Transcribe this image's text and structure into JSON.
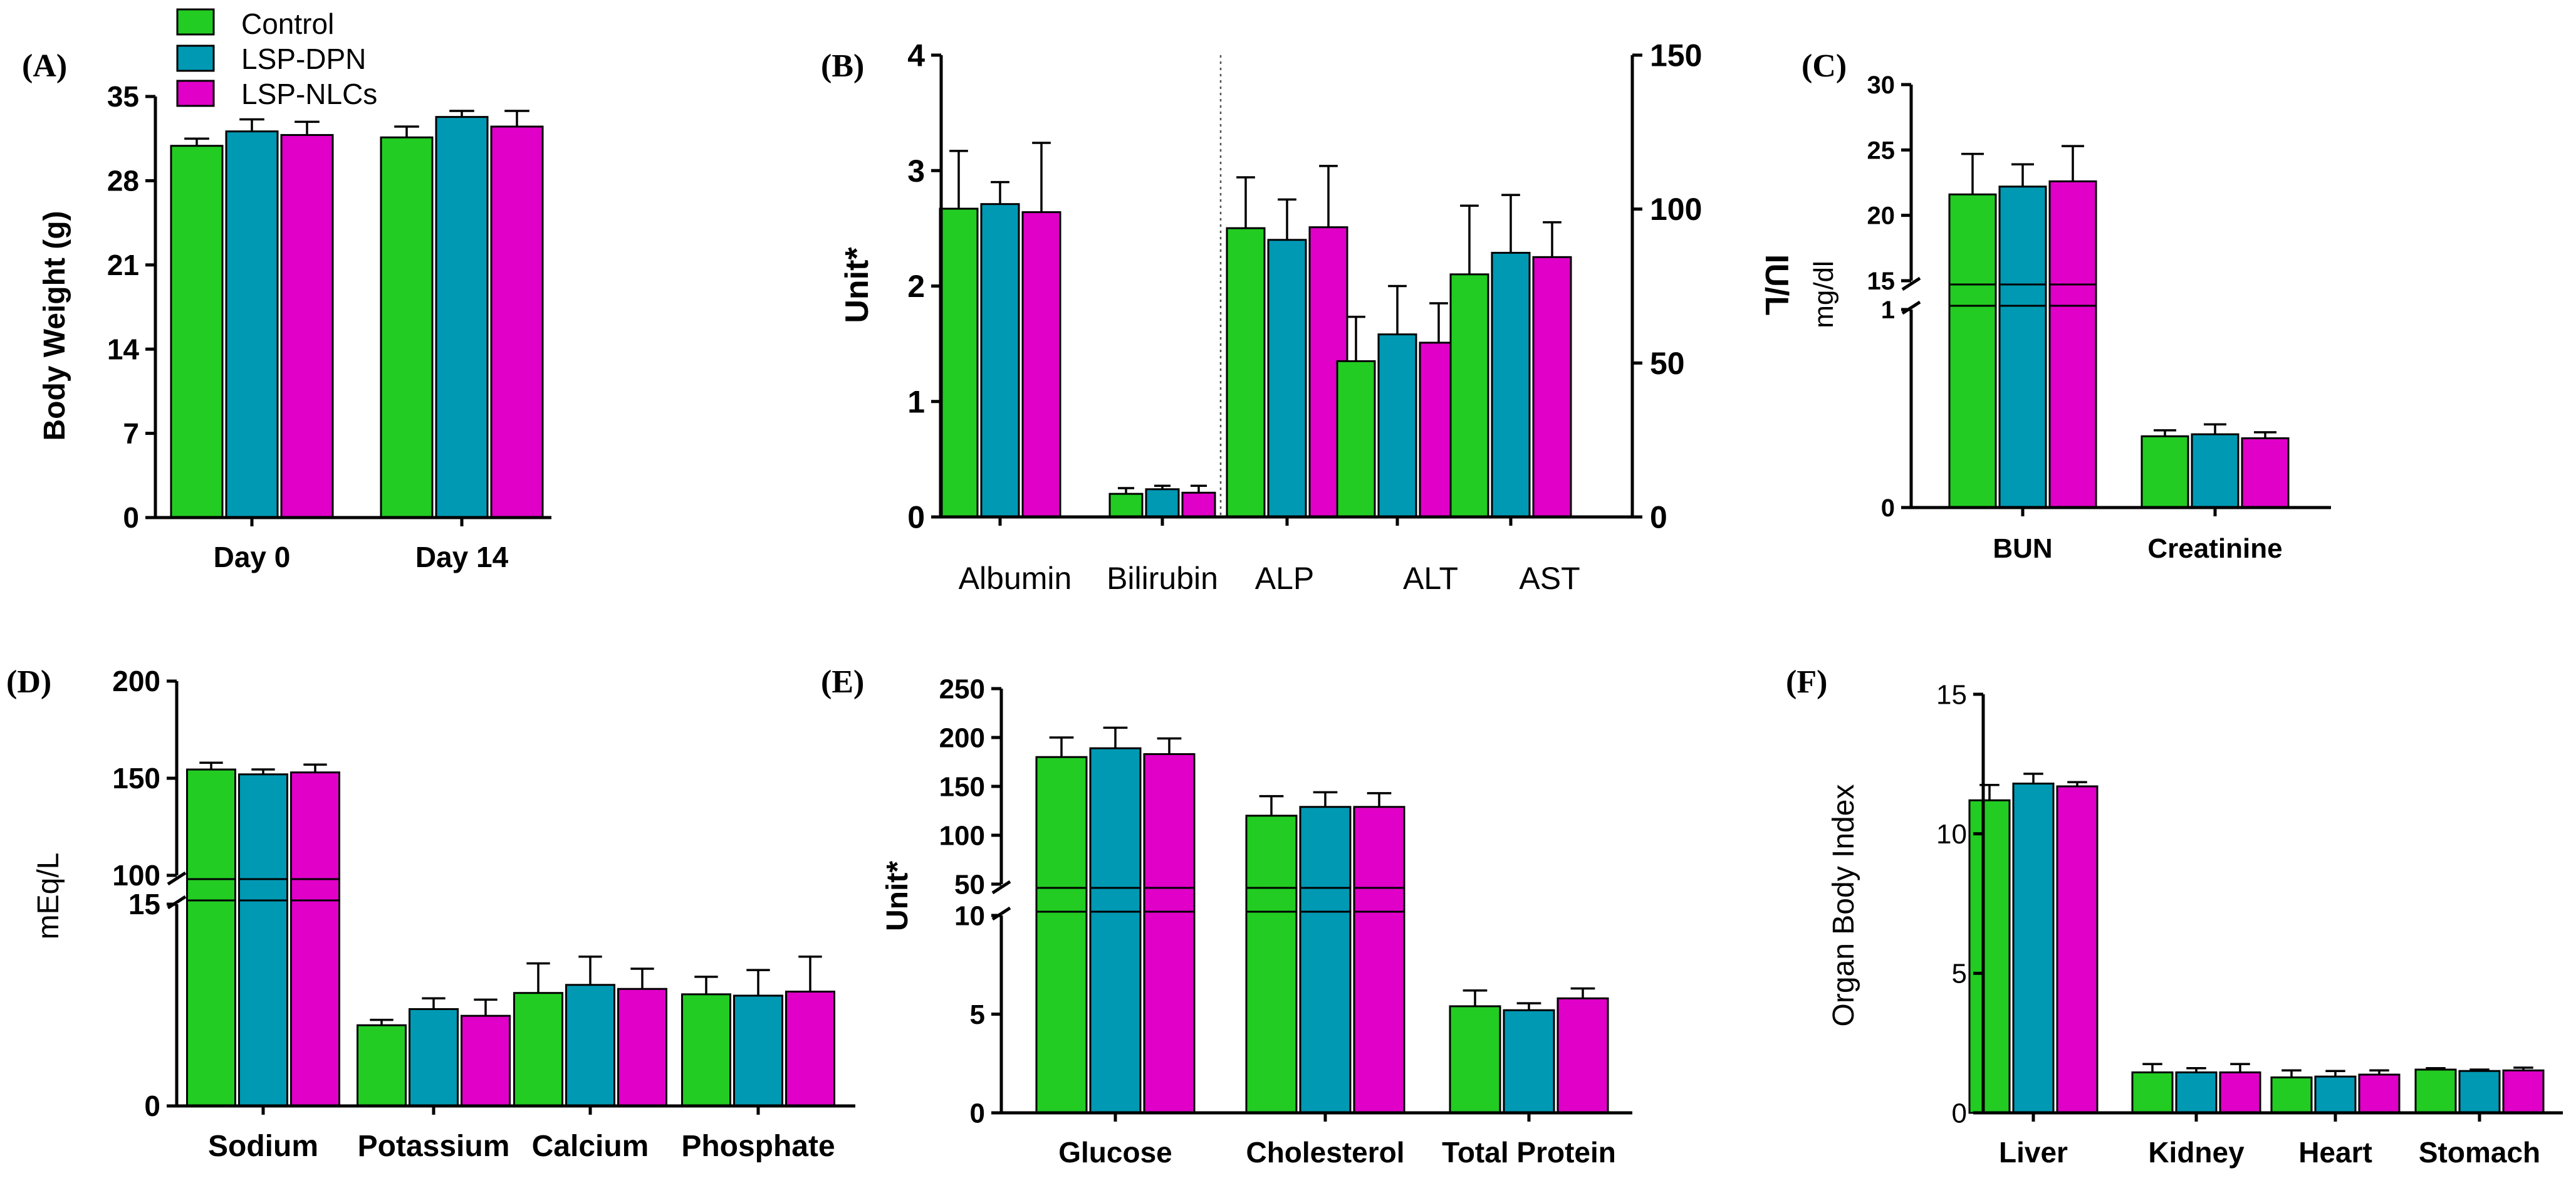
{
  "legend": {
    "items": [
      {
        "label": "Control",
        "color": "#22cc22"
      },
      {
        "label": "LSP-DPN",
        "color": "#0099b4"
      },
      {
        "label": "LSP-NLCs",
        "color": "#e000c8"
      }
    ]
  },
  "colors": {
    "control": "#22cc22",
    "lspdpn": "#0099b4",
    "lspnlcs": "#e000c8"
  },
  "chart_data": [
    {
      "panel": "(A)",
      "type": "bar",
      "ylabel": "Body Weight (g)",
      "ylim": [
        0,
        35
      ],
      "yticks": [
        "0",
        "7",
        "14",
        "21",
        "28",
        "35"
      ],
      "categories": [
        "Day 0",
        "Day 14"
      ],
      "series": [
        {
          "name": "Control",
          "values": [
            30.9,
            31.6
          ],
          "errors": [
            0.6,
            0.9
          ]
        },
        {
          "name": "LSP-DPN",
          "values": [
            32.1,
            33.3
          ],
          "errors": [
            1.0,
            0.5
          ]
        },
        {
          "name": "LSP-NLCs",
          "values": [
            31.8,
            32.5
          ],
          "errors": [
            1.1,
            1.3
          ]
        }
      ]
    },
    {
      "panel": "(B)",
      "type": "bar",
      "ylabel": "Unit*",
      "ylabel_right": "IU/L",
      "ylim": [
        0,
        4
      ],
      "ylim_right": [
        0,
        150
      ],
      "yticks": [
        "0",
        "1",
        "2",
        "3",
        "4"
      ],
      "yticks_right": [
        "0",
        "50",
        "100",
        "150"
      ],
      "categories": [
        "Albumin",
        "Bilirubin",
        "ALP",
        "ALT",
        "AST"
      ],
      "axis_assignment": [
        "left",
        "left",
        "right",
        "right",
        "right"
      ],
      "series": [
        {
          "name": "Control",
          "values": [
            2.67,
            0.2,
            93.8,
            50.6,
            78.8
          ],
          "errors": [
            0.5,
            0.05,
            16.5,
            14.4,
            22.3
          ]
        },
        {
          "name": "LSP-DPN",
          "values": [
            2.71,
            0.24,
            90.0,
            59.3,
            85.8
          ],
          "errors": [
            0.19,
            0.03,
            13.1,
            15.7,
            18.8
          ]
        },
        {
          "name": "LSP-NLCs",
          "values": [
            2.64,
            0.21,
            94.1,
            56.6,
            84.4
          ],
          "errors": [
            0.6,
            0.06,
            19.9,
            12.8,
            11.3
          ]
        }
      ]
    },
    {
      "panel": "(C)",
      "type": "bar",
      "ylabel": "mg/dl",
      "y_break": {
        "lower": [
          0,
          1
        ],
        "upper": [
          15,
          30
        ]
      },
      "yticks_lower": [
        "0",
        "1"
      ],
      "yticks_upper": [
        "15",
        "20",
        "25",
        "30"
      ],
      "categories": [
        "BUN",
        "Creatinine"
      ],
      "series": [
        {
          "name": "Control",
          "values": [
            21.6,
            0.36
          ],
          "errors": [
            3.1,
            0.03
          ]
        },
        {
          "name": "LSP-DPN",
          "values": [
            22.2,
            0.37
          ],
          "errors": [
            1.7,
            0.05
          ]
        },
        {
          "name": "LSP-NLCs",
          "values": [
            22.6,
            0.35
          ],
          "errors": [
            2.7,
            0.03
          ]
        }
      ]
    },
    {
      "panel": "(D)",
      "type": "bar",
      "ylabel": "mEq/L",
      "y_break": {
        "lower": [
          0,
          15
        ],
        "upper": [
          100,
          200
        ]
      },
      "yticks_lower": [
        "0",
        "15"
      ],
      "yticks_upper": [
        "100",
        "150",
        "200"
      ],
      "categories": [
        "Sodium",
        "Potassium",
        "Calcium",
        "Phosphate"
      ],
      "series": [
        {
          "name": "Control",
          "values": [
            154.5,
            6.0,
            8.4,
            8.3
          ],
          "errors": [
            3.5,
            0.4,
            2.2,
            1.3
          ]
        },
        {
          "name": "LSP-DPN",
          "values": [
            152.0,
            7.2,
            9.0,
            8.2
          ],
          "errors": [
            2.5,
            0.8,
            2.1,
            1.9
          ]
        },
        {
          "name": "LSP-NLCs",
          "values": [
            153.0,
            6.7,
            8.7,
            8.5
          ],
          "errors": [
            4.0,
            1.2,
            1.5,
            2.6
          ]
        }
      ]
    },
    {
      "panel": "(E)",
      "type": "bar",
      "ylabel": "Unit*",
      "y_break": {
        "lower": [
          0,
          10
        ],
        "upper": [
          50,
          250
        ]
      },
      "yticks_lower": [
        "0",
        "5",
        "10"
      ],
      "yticks_upper": [
        "50",
        "100",
        "150",
        "200",
        "250"
      ],
      "categories": [
        "Glucose",
        "Cholesterol",
        "Total Protein"
      ],
      "series": [
        {
          "name": "Control",
          "values": [
            180,
            120,
            5.4
          ],
          "errors": [
            20,
            20,
            0.8
          ]
        },
        {
          "name": "LSP-DPN",
          "values": [
            189,
            129,
            5.2
          ],
          "errors": [
            21,
            15,
            0.35
          ]
        },
        {
          "name": "LSP-NLCs",
          "values": [
            183,
            129,
            5.8
          ],
          "errors": [
            16,
            14,
            0.5
          ]
        }
      ]
    },
    {
      "panel": "(F)",
      "type": "bar",
      "ylabel": "Organ Body Index",
      "ylim": [
        0,
        15
      ],
      "yticks": [
        "0",
        "5",
        "10",
        "15"
      ],
      "categories": [
        "Liver",
        "Kidney",
        "Heart",
        "Stomach"
      ],
      "series": [
        {
          "name": "Control",
          "values": [
            11.2,
            1.45,
            1.27,
            1.55
          ],
          "errors": [
            0.55,
            0.3,
            0.25,
            0.05
          ]
        },
        {
          "name": "LSP-DPN",
          "values": [
            11.8,
            1.45,
            1.3,
            1.5
          ],
          "errors": [
            0.35,
            0.15,
            0.2,
            0.05
          ]
        },
        {
          "name": "LSP-NLCs",
          "values": [
            11.7,
            1.45,
            1.37,
            1.52
          ],
          "errors": [
            0.15,
            0.3,
            0.15,
            0.1
          ]
        }
      ]
    }
  ]
}
